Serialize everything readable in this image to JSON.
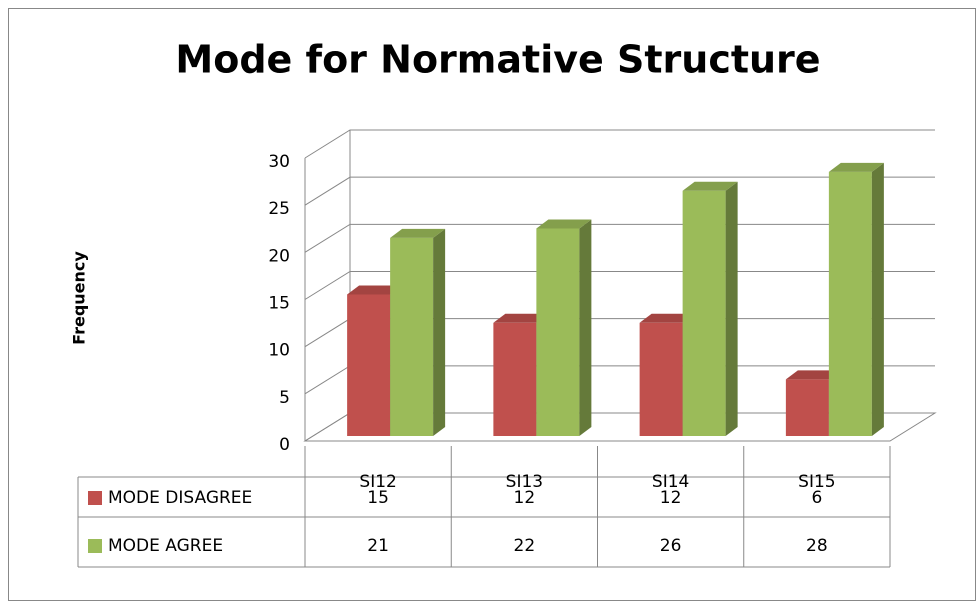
{
  "chart_data": {
    "type": "bar3d",
    "title": "Mode for Normative Structure",
    "y_label": "Frequency",
    "categories": [
      "SI12",
      "SI13",
      "SI14",
      "SI15"
    ],
    "series": [
      {
        "name": "MODE DISAGREE",
        "color": "#c0504d",
        "values": [
          15,
          12,
          12,
          6
        ]
      },
      {
        "name": "MODE AGREE",
        "color": "#9bbb59",
        "values": [
          21,
          22,
          26,
          28
        ]
      }
    ],
    "ylim": [
      0,
      30
    ],
    "yticks": [
      0,
      5,
      10,
      15,
      20,
      25,
      30
    ],
    "grid": true
  }
}
